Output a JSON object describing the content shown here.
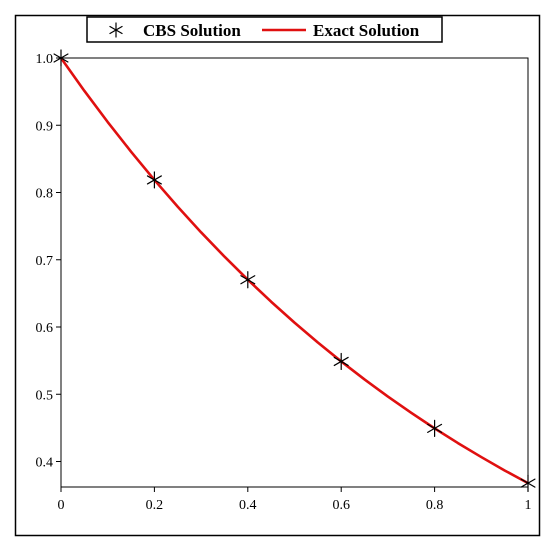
{
  "chart_data": {
    "type": "line",
    "title": "",
    "xlabel": "",
    "ylabel": "",
    "xlim": [
      0,
      1
    ],
    "ylim": [
      0.3621,
      1.0
    ],
    "x_ticks": [
      0,
      0.2,
      0.4,
      0.6,
      0.8,
      1
    ],
    "x_tick_labels": [
      "0",
      "0.2",
      "0.4",
      "0.6",
      "0.8",
      "1"
    ],
    "y_ticks": [
      0.4,
      0.5,
      0.6,
      0.7,
      0.8,
      0.9,
      1.0
    ],
    "y_tick_labels": [
      "0.4",
      "0.5",
      "0.6",
      "0.7",
      "0.8",
      "0.9",
      "1.0"
    ],
    "grid": false,
    "legend_position": "top-center",
    "series": [
      {
        "name": "CBS Solution",
        "style": "markers",
        "marker": "asterisk",
        "color": "#000000",
        "x": [
          0,
          0.2,
          0.4,
          0.6,
          0.8,
          1.0
        ],
        "y": [
          1.0,
          0.8187,
          0.6703,
          0.5488,
          0.4493,
          0.3679
        ]
      },
      {
        "name": "Exact Solution",
        "style": "line",
        "color": "#e01010",
        "x": [
          0,
          0.05,
          0.1,
          0.15,
          0.2,
          0.25,
          0.3,
          0.35,
          0.4,
          0.45,
          0.5,
          0.55,
          0.6,
          0.65,
          0.7,
          0.75,
          0.8,
          0.85,
          0.9,
          0.95,
          1.0
        ],
        "y": [
          1.0,
          0.9512,
          0.9048,
          0.8607,
          0.8187,
          0.7788,
          0.7408,
          0.7047,
          0.6703,
          0.6376,
          0.6065,
          0.5769,
          0.5488,
          0.522,
          0.4966,
          0.4724,
          0.4493,
          0.4274,
          0.4066,
          0.3867,
          0.3679
        ]
      }
    ]
  }
}
